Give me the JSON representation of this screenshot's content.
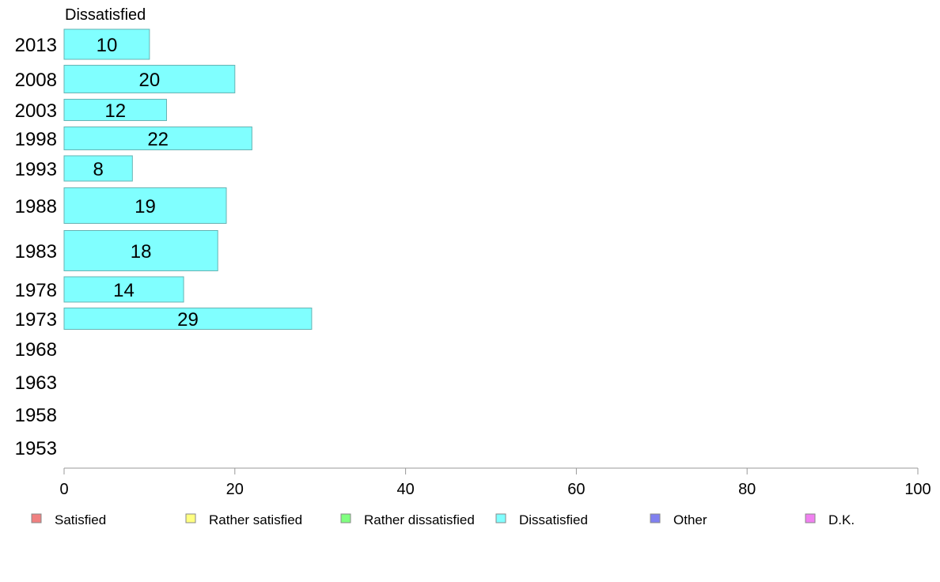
{
  "chart_data": {
    "type": "bar",
    "orientation": "horizontal",
    "title": "Dissatisfied",
    "xlim": [
      0,
      100
    ],
    "x_ticks": [
      "0",
      "20",
      "40",
      "60",
      "80",
      "100"
    ],
    "categories": [
      "2013",
      "2008",
      "2003",
      "1998",
      "1993",
      "1988",
      "1983",
      "1978",
      "1973",
      "1968",
      "1963",
      "1958",
      "1953"
    ],
    "values": [
      10,
      20,
      12,
      22,
      8,
      19,
      18,
      14,
      29,
      null,
      null,
      null,
      null
    ],
    "value_labels": [
      "10",
      "20",
      "12",
      "22",
      "8",
      "19",
      "18",
      "14",
      "29",
      "",
      "",
      "",
      ""
    ],
    "bar_color": "#80ffff",
    "bar_border_color": "#66b3b3",
    "grid": false,
    "legend": {
      "placement": "bottom",
      "items": [
        {
          "label": "Satisfied",
          "color": "#f08080"
        },
        {
          "label": "Rather satisfied",
          "color": "#ffff80"
        },
        {
          "label": "Rather dissatisfied",
          "color": "#80ff80"
        },
        {
          "label": "Dissatisfied",
          "color": "#80ffff"
        },
        {
          "label": "Other",
          "color": "#8080f0"
        },
        {
          "label": "D.K.",
          "color": "#f080f0"
        }
      ]
    }
  }
}
